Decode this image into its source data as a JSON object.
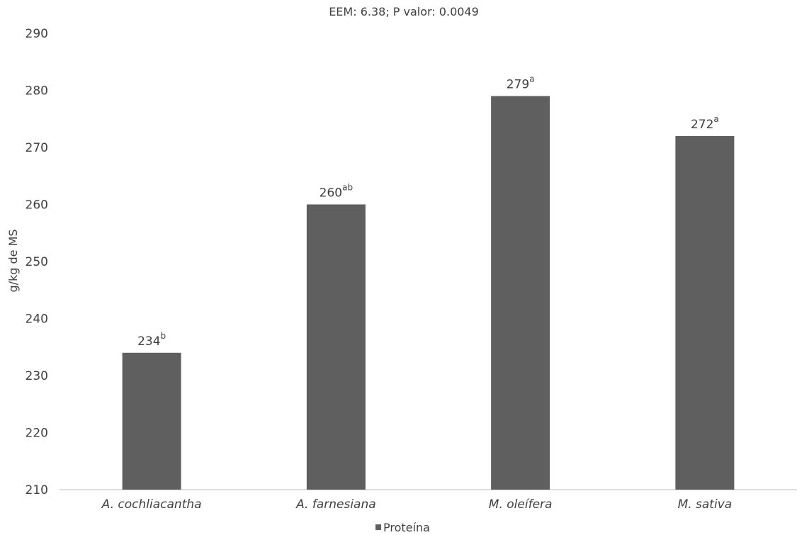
{
  "chart_data": {
    "type": "bar",
    "subtitle": "EEM: 6.38; P valor: 0.0049",
    "ylabel": "g/kg de MS",
    "xlabel": "",
    "ylim": [
      210,
      290
    ],
    "yticks": [
      210,
      220,
      230,
      240,
      250,
      260,
      270,
      280,
      290
    ],
    "categories": [
      "A. cochliacantha",
      "A. farnesiana",
      "M. oleífera",
      "M. sativa"
    ],
    "series": [
      {
        "name": "Proteína",
        "values": [
          234,
          260,
          279,
          272
        ],
        "labels": [
          "234",
          "260",
          "279",
          "272"
        ],
        "superscripts": [
          "b",
          "ab",
          "a",
          "a"
        ]
      }
    ],
    "grid": false,
    "legend_position": "bottom",
    "colors": {
      "bar": "#5f5f5f",
      "axis": "#bfbfbf",
      "text": "#404040"
    }
  }
}
